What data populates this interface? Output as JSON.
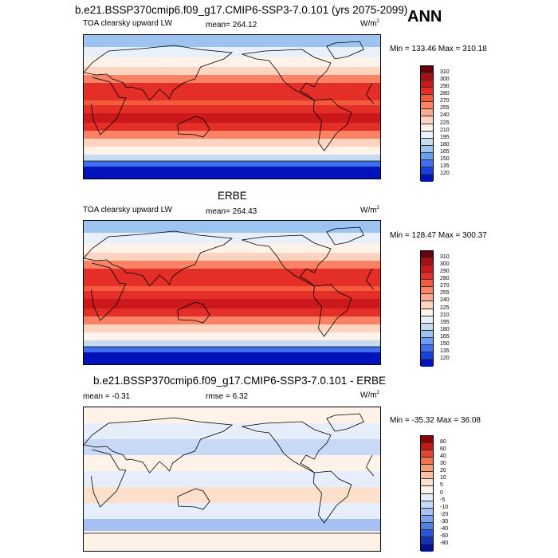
{
  "main_title": "b.e21.BSSP370cmip6.f09_g17.CMIP6-SSP3-7.0.101 (yrs 2075-2099)",
  "season": "ANN",
  "panels": [
    {
      "title": "",
      "variable": "TOA clearsky upward LW",
      "stat1": "mean= 264.12",
      "stat2": "",
      "units_base": "W/m",
      "units_sup": "2",
      "minmax": "Min = 133.46 Max = 310.18",
      "colorbar_labels": [
        "310",
        "300",
        "290",
        "280",
        "270",
        "255",
        "240",
        "225",
        "210",
        "195",
        "180",
        "165",
        "150",
        "135",
        "120"
      ],
      "colorbar_colors": [
        "#67000d",
        "#a50f15",
        "#cb181d",
        "#e32f27",
        "#f25b3c",
        "#fb8264",
        "#fcaa8e",
        "#fdd4c0",
        "#fff3e9",
        "#e8f0fb",
        "#c6dbef",
        "#9dc3f0",
        "#6b9ef3",
        "#3f6fee",
        "#1842e0",
        "#0013b8"
      ]
    },
    {
      "title": "ERBE",
      "variable": "TOA clearsky upward LW",
      "stat1": "mean= 264.43",
      "stat2": "",
      "units_base": "W/m",
      "units_sup": "2",
      "minmax": "Min = 128.47 Max = 300.37",
      "colorbar_labels": [
        "310",
        "300",
        "290",
        "280",
        "270",
        "255",
        "240",
        "225",
        "210",
        "195",
        "180",
        "165",
        "150",
        "135",
        "120"
      ],
      "colorbar_colors": [
        "#67000d",
        "#a50f15",
        "#cb181d",
        "#e32f27",
        "#f25b3c",
        "#fb8264",
        "#fcaa8e",
        "#fdd4c0",
        "#fff3e9",
        "#e8f0fb",
        "#c6dbef",
        "#9dc3f0",
        "#6b9ef3",
        "#3f6fee",
        "#1842e0",
        "#0013b8"
      ]
    },
    {
      "title": "b.e21.BSSP370cmip6.f09_g17.CMIP6-SSP3-7.0.101 - ERBE",
      "variable": "",
      "stat1": "mean =  -0.31",
      "stat2": "rmse =   6.32",
      "units_base": "W/m",
      "units_sup": "2",
      "minmax": "Min = -35.32 Max =  36.08",
      "colorbar_labels": [
        "80",
        "60",
        "40",
        "30",
        "20",
        "10",
        "5",
        "0",
        "-5",
        "-10",
        "-20",
        "-30",
        "-40",
        "-60",
        "-80"
      ],
      "colorbar_colors": [
        "#8b0000",
        "#bf1a1a",
        "#e0452d",
        "#f2734f",
        "#f89c76",
        "#fbc1a1",
        "#fde0cc",
        "#fff3e9",
        "#e6eefb",
        "#c8d9f7",
        "#a5c0f2",
        "#7ea2ec",
        "#5580e4",
        "#2c55d6",
        "#1232b8",
        "#00108a"
      ]
    }
  ]
}
